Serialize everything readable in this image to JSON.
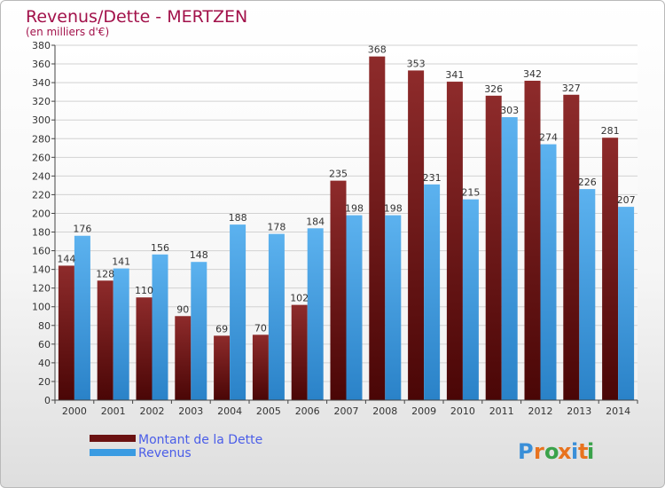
{
  "chart_data": {
    "type": "bar",
    "title": "Revenus/Dette - MERTZEN",
    "subtitle": "(en milliers d'€)",
    "categories": [
      "2000",
      "2001",
      "2002",
      "2003",
      "2004",
      "2005",
      "2006",
      "2007",
      "2008",
      "2009",
      "2010",
      "2011",
      "2012",
      "2013",
      "2014"
    ],
    "series": [
      {
        "name": "Montant de la Dette",
        "color": "#7a1c1c",
        "values": [
          144,
          128,
          110,
          90,
          69,
          70,
          102,
          235,
          368,
          353,
          341,
          326,
          342,
          327,
          281
        ]
      },
      {
        "name": "Revenus",
        "color": "#3a9be2",
        "values": [
          176,
          141,
          156,
          148,
          188,
          178,
          184,
          198,
          198,
          231,
          215,
          303,
          274,
          226,
          207
        ]
      }
    ],
    "ylim": [
      0,
      380
    ],
    "ytick_step": 20,
    "grid": true,
    "legend_position": "bottom-left"
  },
  "logo": {
    "text": "Proxiti"
  }
}
